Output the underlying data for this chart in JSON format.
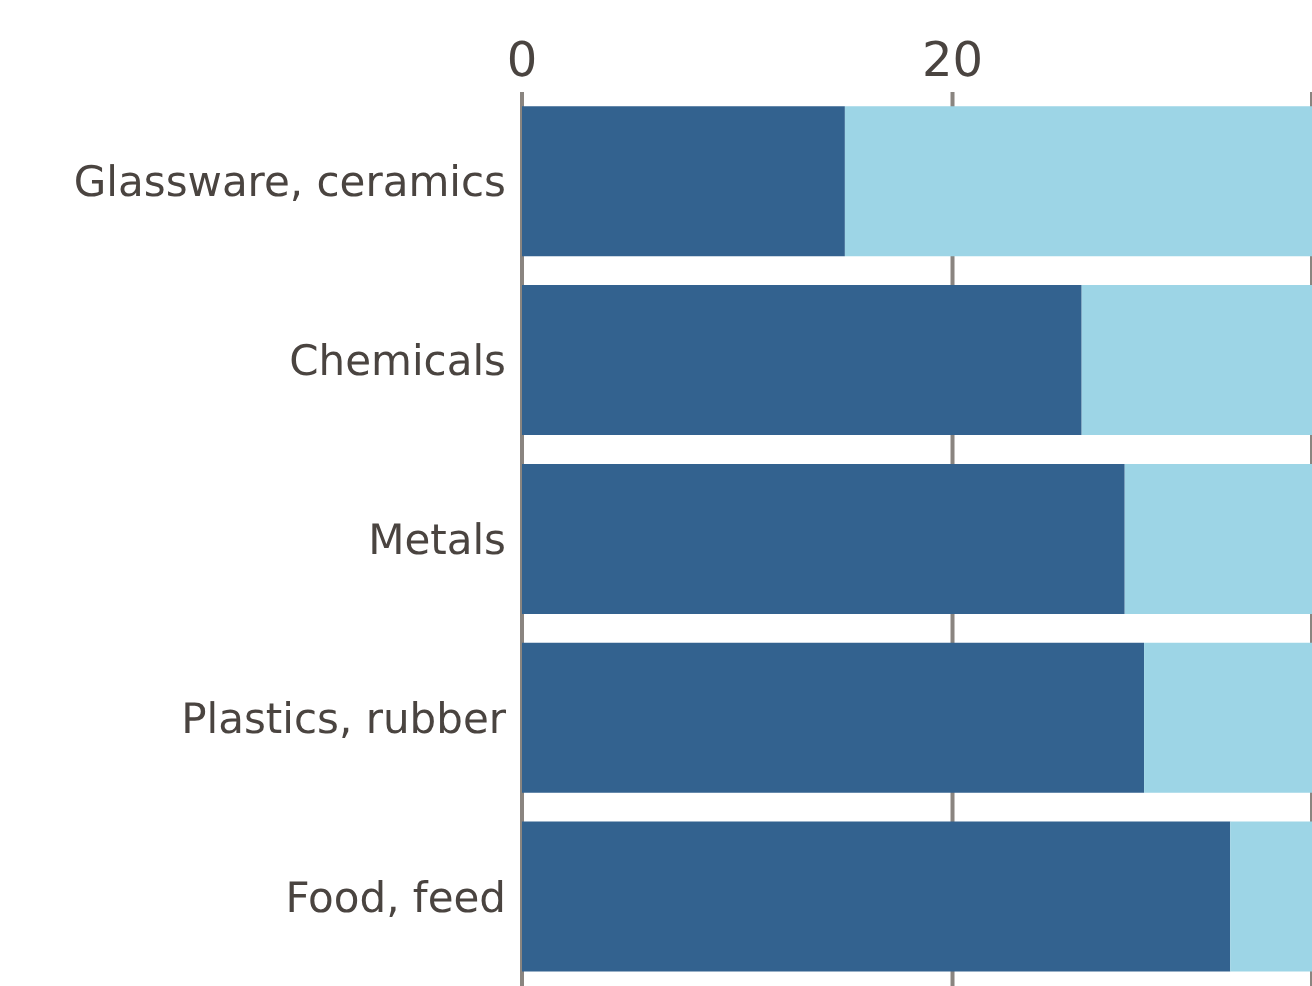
{
  "chart_data": {
    "type": "bar",
    "orientation": "horizontal",
    "stacked": true,
    "categories": [
      "Glassware, ceramics",
      "Chemicals",
      "Metals",
      "Plastics, rubber",
      "Food, feed"
    ],
    "series": [
      {
        "color": "#33628f",
        "values": [
          15.0,
          26.0,
          28.0,
          28.9,
          32.9
        ]
      },
      {
        "color": "#9dd5e6",
        "values": [
          21.7,
          10.7,
          8.7,
          7.8,
          3.8
        ]
      }
    ],
    "xlim": [
      0,
      36.7
    ],
    "xticks": [
      0,
      20
    ],
    "grid": "x"
  }
}
